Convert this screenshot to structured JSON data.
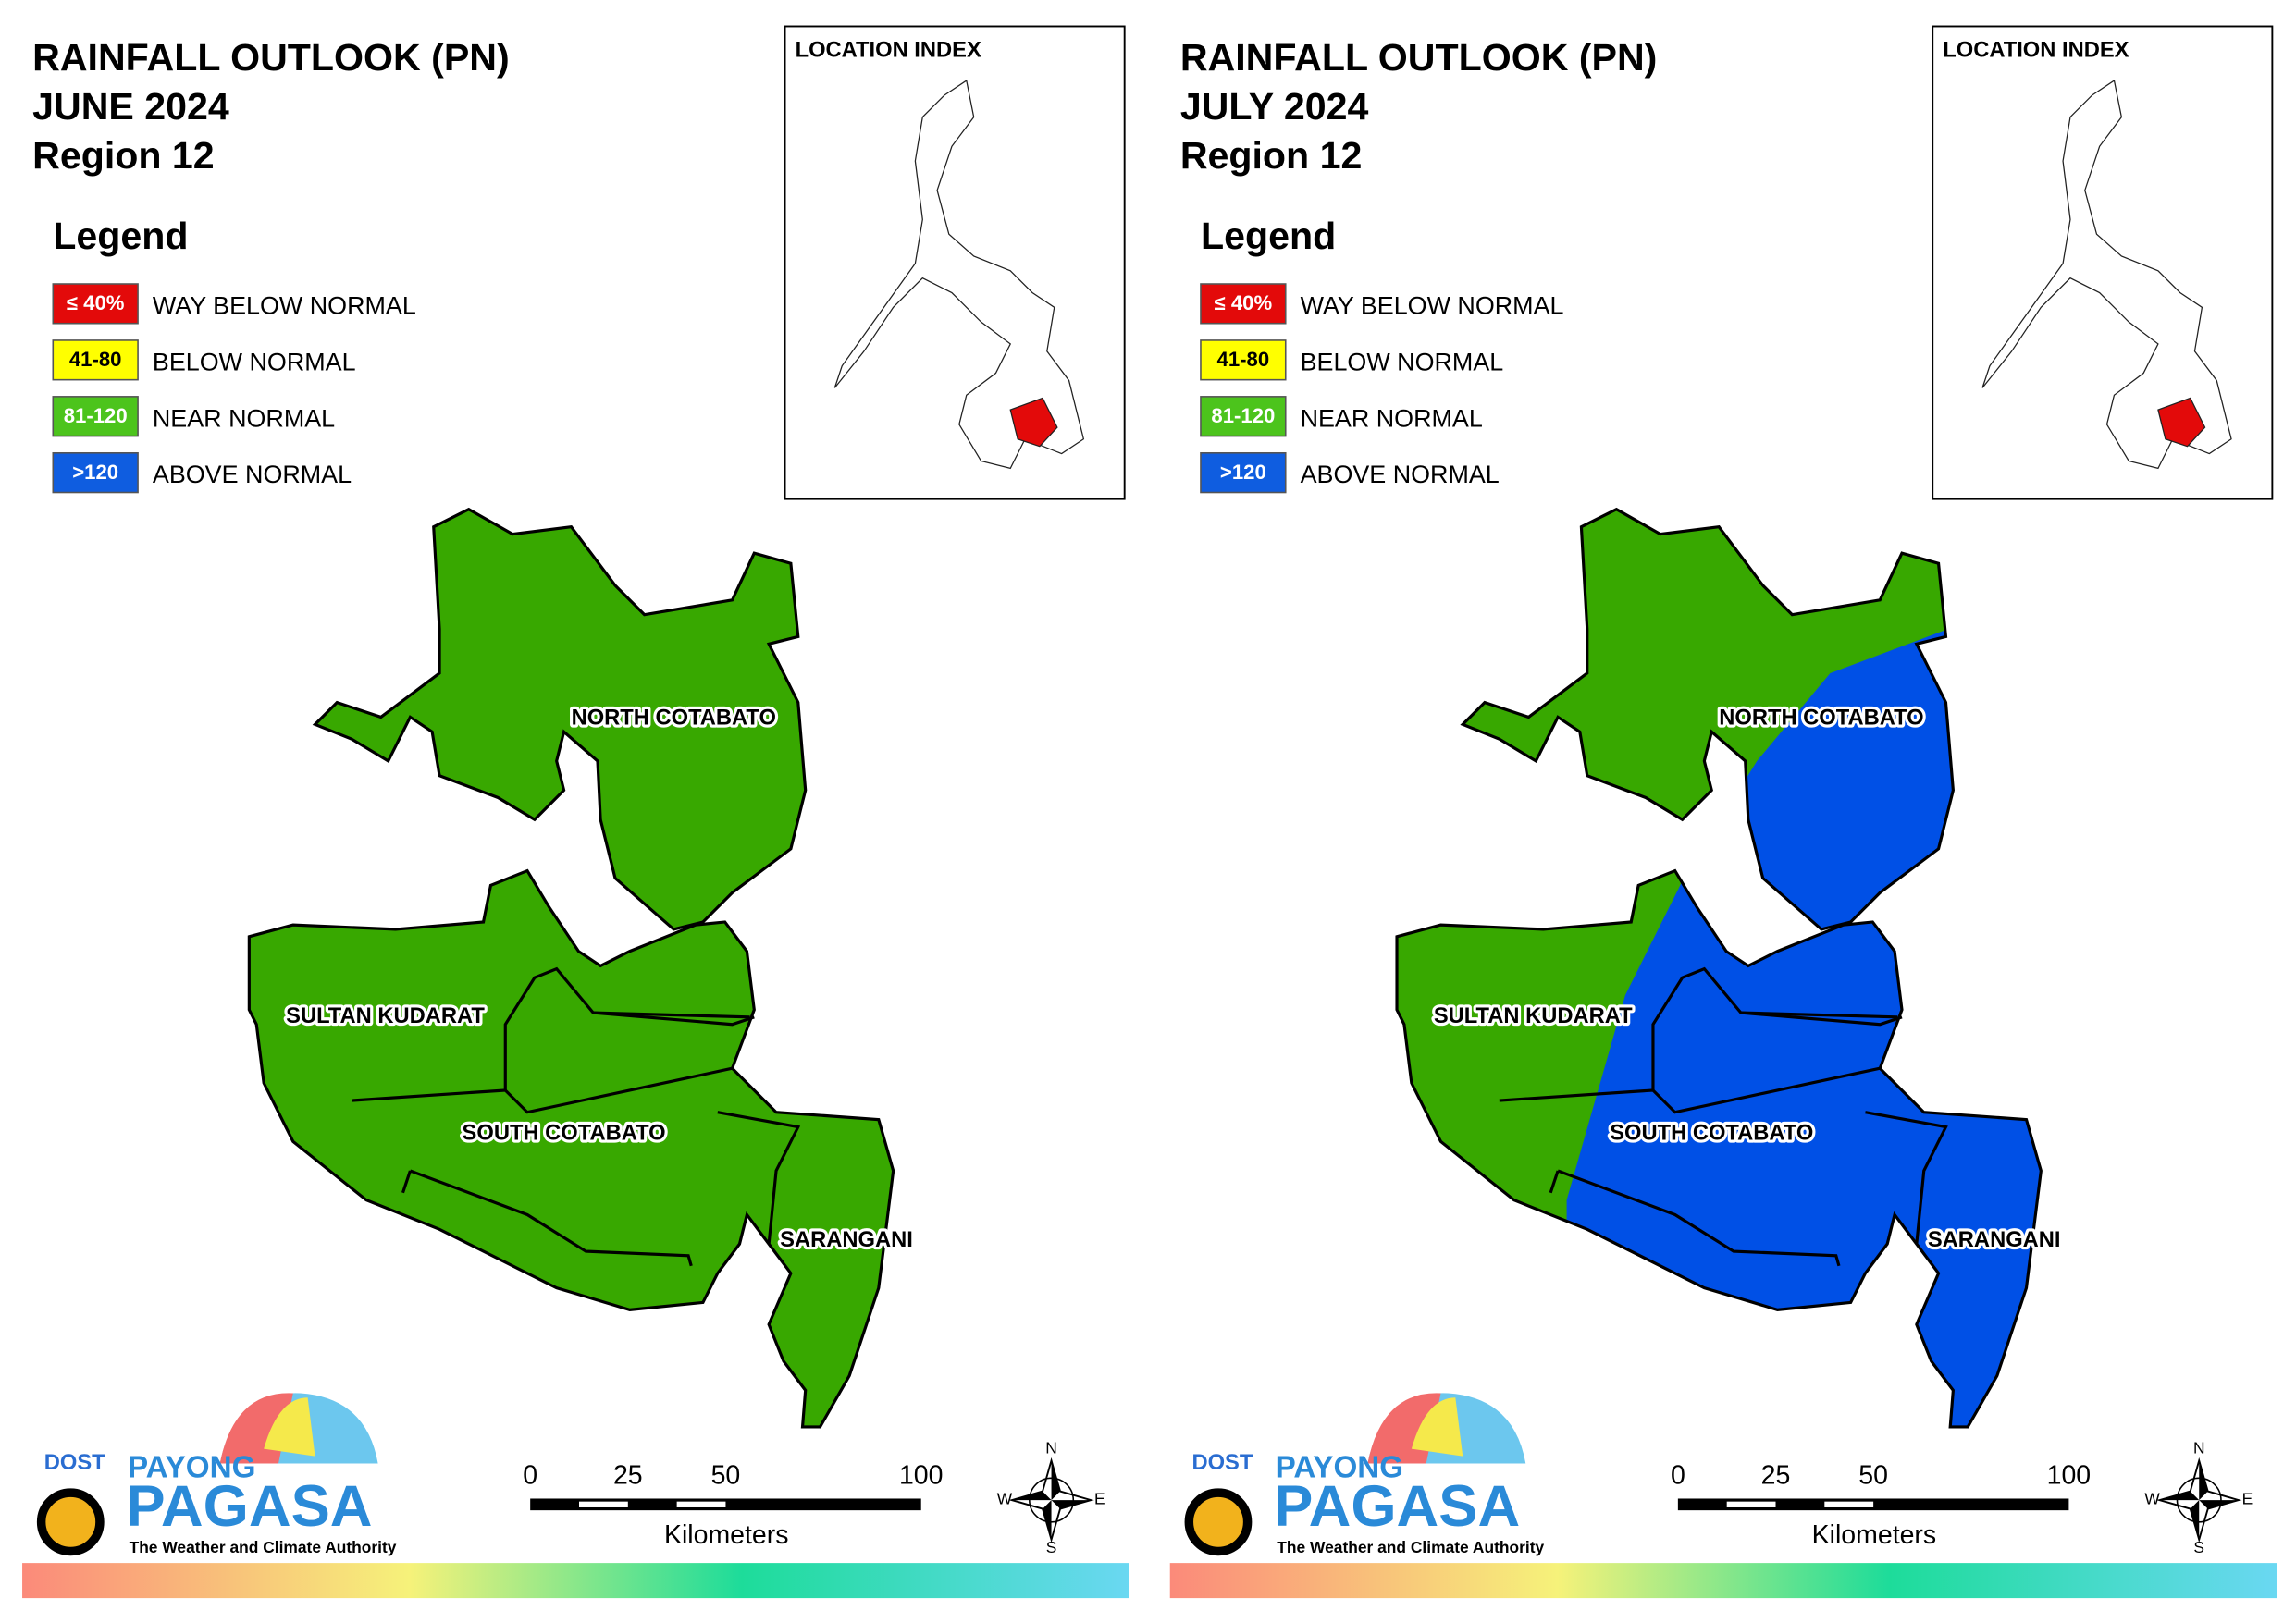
{
  "panels": [
    {
      "title": [
        "RAINFALL OUTLOOK (PN)",
        "JUNE 2024",
        "Region 12"
      ],
      "legend": {
        "title": "Legend",
        "items": [
          {
            "key": "≤ 40%",
            "label": "WAY BELOW NORMAL",
            "color": "#e30a0a"
          },
          {
            "key": "41-80",
            "label": "BELOW NORMAL",
            "color": "#ffff00"
          },
          {
            "key": "81-120",
            "label": "NEAR NORMAL",
            "color": "#4cc41c"
          },
          {
            "key": ">120",
            "label": "ABOVE NORMAL",
            "color": "#0f5de0"
          }
        ]
      },
      "location_index": "LOCATION INDEX",
      "provinces": [
        "NORTH COTABATO",
        "SULTAN KUDARAT",
        "SOUTH COTABATO",
        "SARANGANI"
      ],
      "scale": {
        "ticks": [
          0,
          25,
          50,
          100
        ],
        "unit": "Kilometers"
      },
      "compass": [
        "N",
        "E",
        "S",
        "W"
      ],
      "logo": {
        "agency": "DOST",
        "brand_top": "PAYONG",
        "brand": "PAGASA",
        "tagline": "The Weather and Climate Authority"
      }
    },
    {
      "title": [
        "RAINFALL OUTLOOK (PN)",
        "JULY 2024",
        "Region 12"
      ],
      "legend": {
        "title": "Legend",
        "items": [
          {
            "key": "≤ 40%",
            "label": "WAY BELOW NORMAL",
            "color": "#e30a0a"
          },
          {
            "key": "41-80",
            "label": "BELOW NORMAL",
            "color": "#ffff00"
          },
          {
            "key": "81-120",
            "label": "NEAR NORMAL",
            "color": "#4cc41c"
          },
          {
            "key": ">120",
            "label": "ABOVE NORMAL",
            "color": "#0f5de0"
          }
        ]
      },
      "location_index": "LOCATION INDEX",
      "provinces": [
        "NORTH COTABATO",
        "SULTAN KUDARAT",
        "SOUTH COTABATO",
        "SARANGANI"
      ],
      "scale": {
        "ticks": [
          0,
          25,
          50,
          100
        ],
        "unit": "Kilometers"
      },
      "compass": [
        "N",
        "E",
        "S",
        "W"
      ],
      "logo": {
        "agency": "DOST",
        "brand_top": "PAYONG",
        "brand": "PAGASA",
        "tagline": "The Weather and Climate Authority"
      }
    }
  ]
}
